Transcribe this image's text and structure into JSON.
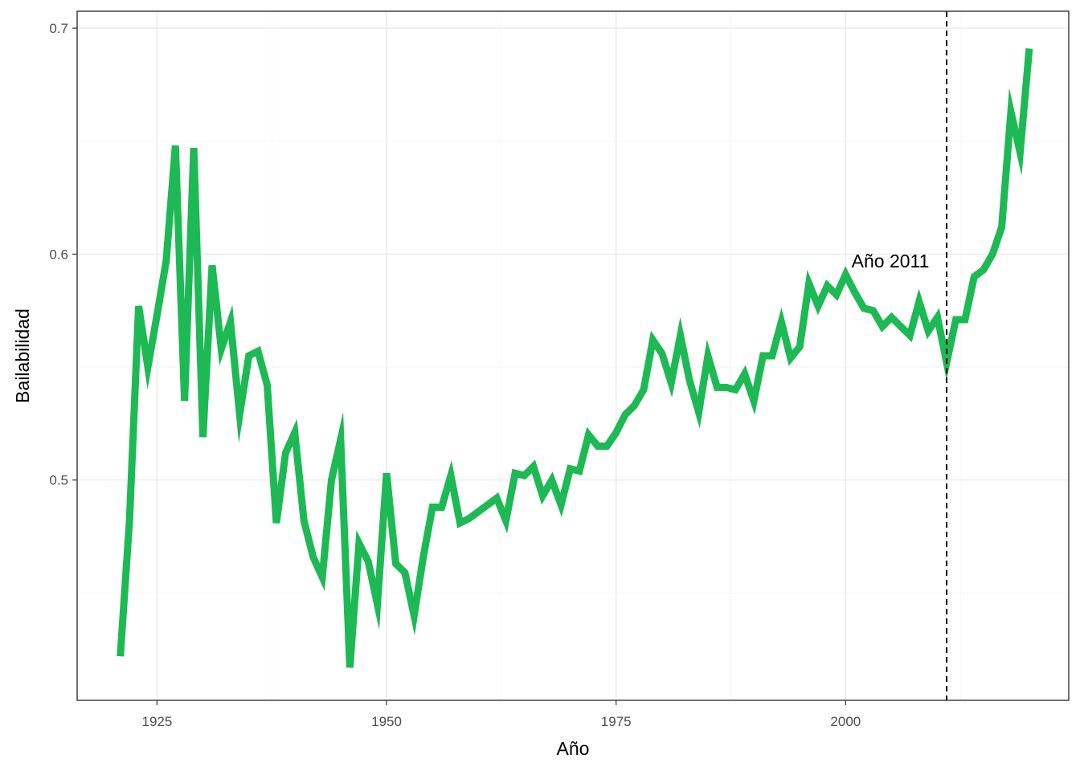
{
  "chart_data": {
    "type": "line",
    "title": "",
    "xlabel": "Año",
    "ylabel": "Bailabilidad",
    "xlim": [
      1916.3,
      2024.3
    ],
    "ylim": [
      0.4025,
      0.7075
    ],
    "x_ticks": [
      1925,
      1950,
      1975,
      2000
    ],
    "x_tick_labels": [
      "1925",
      "1950",
      "1975",
      "2000"
    ],
    "y_ticks": [
      0.5,
      0.6,
      0.7
    ],
    "y_tick_labels": [
      "0.5",
      "0.6",
      "0.7"
    ],
    "grid": true,
    "line_color": "#1DB954",
    "annotation": {
      "text": "Año 2011",
      "x": 2011,
      "y": 0.597
    },
    "vline": {
      "x": 2011,
      "style": "dashed",
      "color": "#000000"
    },
    "series": [
      {
        "x": [
          1921,
          1922,
          1923,
          1924,
          1925,
          1926,
          1927,
          1928,
          1929,
          1930,
          1931,
          1932,
          1933,
          1934,
          1935,
          1936,
          1937,
          1938,
          1939,
          1940,
          1941,
          1942,
          1943,
          1944,
          1945,
          1946,
          1947,
          1948,
          1949,
          1950,
          1951,
          1952,
          1953,
          1954,
          1955,
          1956,
          1957,
          1958,
          1959,
          1960,
          1961,
          1962,
          1963,
          1964,
          1965,
          1966,
          1967,
          1968,
          1969,
          1970,
          1971,
          1972,
          1973,
          1974,
          1975,
          1976,
          1977,
          1978,
          1979,
          1980,
          1981,
          1982,
          1983,
          1984,
          1985,
          1986,
          1987,
          1988,
          1989,
          1990,
          1991,
          1992,
          1993,
          1994,
          1995,
          1996,
          1997,
          1998,
          1999,
          2000,
          2001,
          2002,
          2003,
          2004,
          2005,
          2006,
          2007,
          2008,
          2009,
          2010,
          2011,
          2012,
          2013,
          2014,
          2015,
          2016,
          2017,
          2018,
          2019,
          2020
        ],
        "values": [
          0.422,
          0.482,
          0.577,
          0.55,
          0.573,
          0.597,
          0.648,
          0.535,
          0.647,
          0.519,
          0.595,
          0.558,
          0.57,
          0.529,
          0.555,
          0.557,
          0.542,
          0.481,
          0.512,
          0.521,
          0.482,
          0.466,
          0.457,
          0.5,
          0.518,
          0.417,
          0.472,
          0.464,
          0.445,
          0.503,
          0.463,
          0.459,
          0.44,
          0.466,
          0.488,
          0.488,
          0.502,
          0.481,
          0.483,
          0.486,
          0.489,
          0.492,
          0.482,
          0.503,
          0.502,
          0.506,
          0.493,
          0.5,
          0.489,
          0.505,
          0.504,
          0.52,
          0.515,
          0.515,
          0.521,
          0.529,
          0.533,
          0.54,
          0.562,
          0.556,
          0.543,
          0.564,
          0.544,
          0.53,
          0.555,
          0.541,
          0.541,
          0.54,
          0.547,
          0.535,
          0.555,
          0.555,
          0.57,
          0.554,
          0.559,
          0.587,
          0.577,
          0.586,
          0.582,
          0.591,
          0.583,
          0.576,
          0.575,
          0.568,
          0.572,
          0.568,
          0.564,
          0.579,
          0.566,
          0.572,
          0.552,
          0.571,
          0.571,
          0.59,
          0.593,
          0.6,
          0.612,
          0.663,
          0.645,
          0.691
        ]
      }
    ]
  }
}
